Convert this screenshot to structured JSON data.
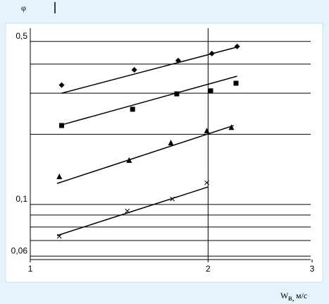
{
  "chart_data": {
    "type": "scatter",
    "log_x": true,
    "log_y": true,
    "y_label": "φ",
    "x_label": "W",
    "x_label_sub": "в,",
    "x_label_unit": "м/с",
    "xlim": [
      1,
      3
    ],
    "ylim": [
      0.058,
      0.57
    ],
    "xticks": [
      1,
      2,
      3
    ],
    "yticks": [
      {
        "value": 0.5,
        "label": "0,5"
      },
      {
        "value": 0.1,
        "label": "0,1"
      },
      {
        "value": 0.06,
        "label": "0,06"
      }
    ],
    "y_grid": [
      0.5,
      0.4,
      0.3,
      0.2,
      0.1,
      0.09,
      0.08,
      0.07,
      0.06
    ],
    "x_grid": [
      2
    ],
    "series": [
      {
        "marker": "diamond",
        "color": "#000000",
        "x": [
          1.13,
          1.5,
          1.78,
          2.03,
          2.24
        ],
        "values": [
          0.325,
          0.378,
          0.414,
          0.444,
          0.476
        ],
        "trend_x": [
          1.13,
          2.26
        ],
        "trend_y": [
          0.3,
          0.476
        ]
      },
      {
        "marker": "square",
        "color": "#000000",
        "x": [
          1.13,
          1.49,
          1.77,
          2.02,
          2.23
        ],
        "values": [
          0.218,
          0.256,
          0.298,
          0.307,
          0.331
        ],
        "trend_x": [
          1.12,
          2.24
        ],
        "trend_y": [
          0.218,
          0.355
        ]
      },
      {
        "marker": "triangle",
        "color": "#000000",
        "x": [
          1.12,
          1.47,
          1.73,
          1.99,
          2.19
        ],
        "values": [
          0.131,
          0.154,
          0.183,
          0.206,
          0.213
        ],
        "trend_x": [
          1.11,
          2.21
        ],
        "trend_y": [
          0.123,
          0.218
        ]
      },
      {
        "marker": "cross",
        "color": "#000000",
        "x": [
          1.12,
          1.46,
          1.74,
          1.99
        ],
        "values": [
          0.073,
          0.0937,
          0.1055,
          0.124
        ],
        "trend_x": [
          1.11,
          2.0
        ],
        "trend_y": [
          0.0735,
          0.1188
        ]
      }
    ]
  }
}
